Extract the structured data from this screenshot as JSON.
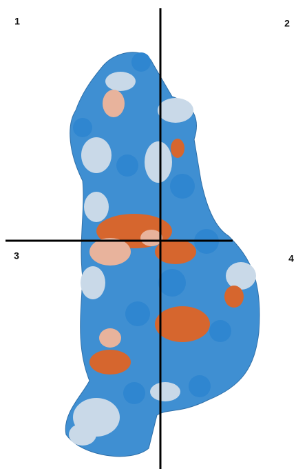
{
  "quadrants": {
    "labels": [
      "1",
      "2",
      "3",
      "4"
    ]
  }
}
